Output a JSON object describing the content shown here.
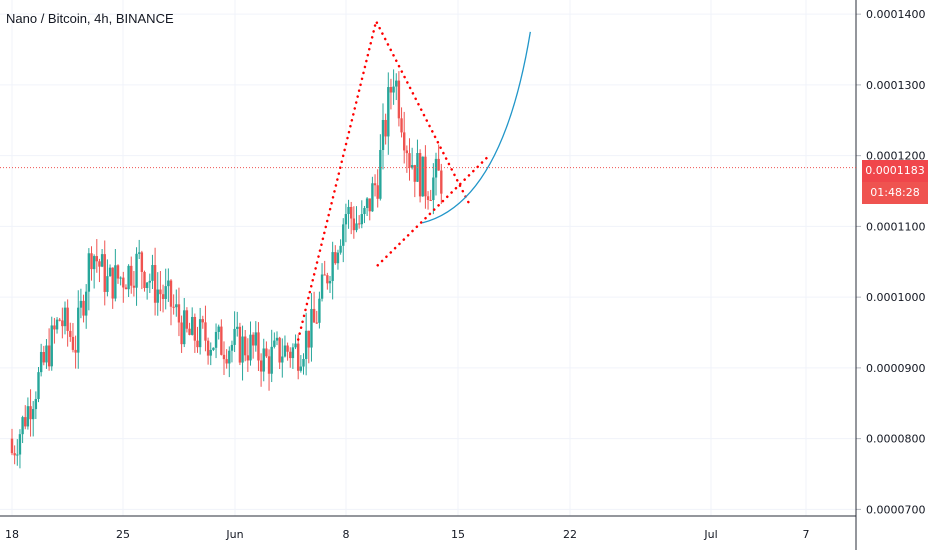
{
  "chart_data": {
    "type": "candlestick",
    "title": "Nano / Bitcoin, 4h, BINANCE",
    "y_ticks": [
      "0.0001400",
      "0.0001300",
      "0.0001200",
      "0.0001100",
      "0.0001000",
      "0.0000900",
      "0.0000800",
      "0.0000700"
    ],
    "x_ticks": [
      "18",
      "25",
      "Jun",
      "8",
      "15",
      "22",
      "Jul",
      "7"
    ],
    "ylim": [
      6.85e-05,
      0.000142
    ],
    "current_price": "0.0001183",
    "countdown": "01:48:28",
    "grid": true,
    "colors": {
      "up": "#26a69a",
      "down": "#ef5350",
      "drawing": "#ff0000",
      "curve": "#2196c9"
    },
    "ohlc_anchors_date_close": [
      [
        "May 18",
        7.8e-05
      ],
      [
        "May 20",
        9.05e-05
      ],
      [
        "May 21",
        9.7e-05
      ],
      [
        "May 22",
        9.35e-05
      ],
      [
        "May 23",
        0.000107
      ],
      [
        "May 24",
        0.000102
      ],
      [
        "May 25",
        0.000103
      ],
      [
        "May 26",
        0.000105
      ],
      [
        "May 27",
        0.0001015
      ],
      [
        "May 28",
        9.9e-05
      ],
      [
        "May 29",
        9.45e-05
      ],
      [
        "May 30",
        9.45e-05
      ],
      [
        "May 31",
        9.35e-05
      ],
      [
        "Jun 1",
        9.3e-05
      ],
      [
        "Jun 2",
        9.1e-05
      ],
      [
        "Jun 3",
        9.25e-05
      ],
      [
        "Jun 4",
        9.25e-05
      ],
      [
        "Jun 5",
        9.6e-05
      ],
      [
        "Jun 6",
        0.000105
      ],
      [
        "Jun 7",
        0.000112
      ],
      [
        "Jun 8",
        0.00011
      ],
      [
        "Jun 9",
        0.000117
      ],
      [
        "Jun 10",
        0.000132
      ],
      [
        "Jun 11",
        0.00012
      ],
      [
        "Jun 12",
        0.000116
      ],
      [
        "Jun 13",
        0.000117
      ],
      [
        "Jun 14",
        0.000119
      ]
    ],
    "drawings": {
      "triangle_upper_dotted": [
        [
          "Jun 4",
          9.4e-05
        ],
        [
          "Jun 8.9",
          0.000139
        ],
        [
          "Jun 14.8",
          0.000113
        ]
      ],
      "triangle_lower_dotted": [
        [
          "Jun 9",
          0.0001045
        ],
        [
          "Jun 16",
          0.00012
        ]
      ],
      "parabolic_curve": [
        [
          "Jun 11.8",
          0.0001105
        ],
        [
          "Jun 18.6",
          0.0001375
        ]
      ]
    }
  }
}
